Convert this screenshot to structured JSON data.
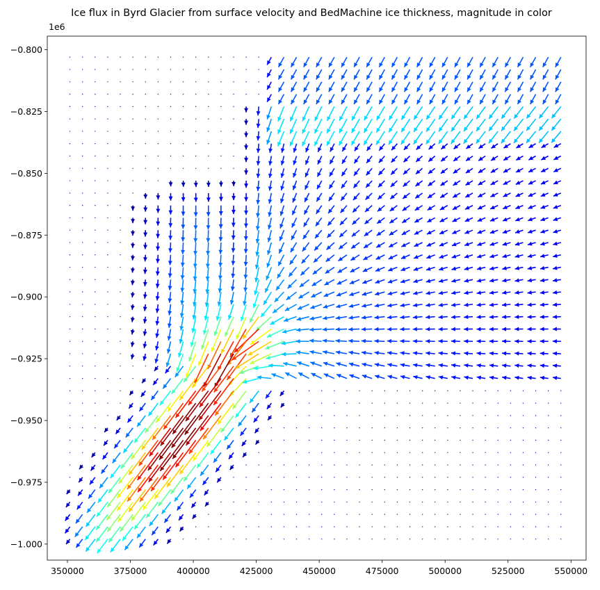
{
  "chart_data": {
    "type": "quiver",
    "title": "Ice flux in Byrd Glacier from surface velocity and BedMachine ice thickness, magnitude in color",
    "xlabel": "",
    "ylabel": "",
    "y_offset_label": "1e6",
    "xlim": [
      342000,
      556000
    ],
    "ylim": [
      -1006500,
      -794500
    ],
    "x_ticks": [
      350000,
      375000,
      400000,
      425000,
      450000,
      475000,
      500000,
      525000,
      550000
    ],
    "x_tick_labels": [
      "350000",
      "375000",
      "400000",
      "425000",
      "450000",
      "475000",
      "500000",
      "525000",
      "550000"
    ],
    "y_ticks": [
      -800000,
      -825000,
      -850000,
      -875000,
      -900000,
      -925000,
      -950000,
      -975000,
      -1000000
    ],
    "y_tick_labels": [
      "−0.800",
      "−0.825",
      "−0.850",
      "−0.875",
      "−0.900",
      "−0.925",
      "−0.950",
      "−0.975",
      "−1.000"
    ],
    "grid_x": {
      "start": 351000,
      "step": 5000,
      "count": 40
    },
    "grid_y": {
      "start": -803000,
      "step": 5000,
      "count": 40
    },
    "colormap": "jet",
    "arrow_color": "magnitude",
    "grid": false,
    "legend": "none",
    "vector_field": {
      "outlet_stream": {
        "line_start": [
          420000,
          -922500
        ],
        "line_direction": [
          -0.6,
          -0.8
        ],
        "upstream_end_distance": -10000,
        "downstream_end_distance": 95000,
        "peak_distance": 33000,
        "peak_width": 20000,
        "peak_speed": 1.0,
        "half_width": 10000
      },
      "upper_channel_stream": {
        "through": [
          404000,
          -890000
        ],
        "direction": [
          0.05,
          -1.0
        ],
        "x_half_width": 14000,
        "extent_y": [
          -845000,
          -928000
        ],
        "speed": 0.26
      },
      "eastern_inflow": {
        "x_range": [
          425000,
          550000
        ],
        "y_range": [
          -825000,
          -930000
        ],
        "focus": [
          420000,
          -915000
        ],
        "speed": 0.28
      },
      "northern_inflow": {
        "x_range": [
          430000,
          550000
        ],
        "y_range": [
          -800000,
          -830000
        ],
        "speed": 0.2
      }
    }
  }
}
